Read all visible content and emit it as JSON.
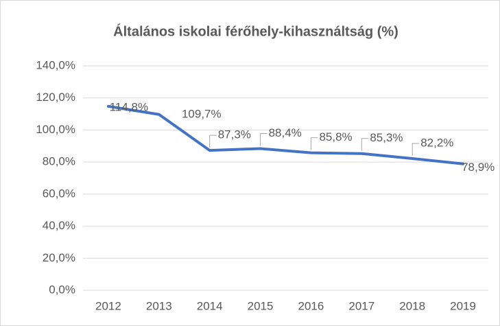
{
  "chart_data": {
    "type": "line",
    "title": "Általános iskolai férőhely-kihasználtság (%)",
    "categories": [
      "2012",
      "2013",
      "2014",
      "2015",
      "2016",
      "2017",
      "2018",
      "2019"
    ],
    "series": [
      {
        "name": "Általános iskolai férőhely-kihasználtság (%)",
        "color": "#4472c4",
        "values": [
          114.8,
          109.7,
          87.3,
          88.4,
          85.8,
          85.3,
          82.2,
          78.9
        ],
        "value_labels": [
          "114,8%",
          "109,7%",
          "87,3%",
          "88,4%",
          "85,8%",
          "85,3%",
          "82,2%",
          "78,9%"
        ]
      }
    ],
    "ylim": [
      0,
      140
    ],
    "yticks": [
      {
        "value": 0,
        "label": "0,0%"
      },
      {
        "value": 20,
        "label": "20,0%"
      },
      {
        "value": 40,
        "label": "40,0%"
      },
      {
        "value": 60,
        "label": "60,0%"
      },
      {
        "value": 80,
        "label": "80,0%"
      },
      {
        "value": 100,
        "label": "100,0%"
      },
      {
        "value": 120,
        "label": "120,0%"
      },
      {
        "value": 140,
        "label": "140,0%"
      }
    ],
    "grid": true
  }
}
